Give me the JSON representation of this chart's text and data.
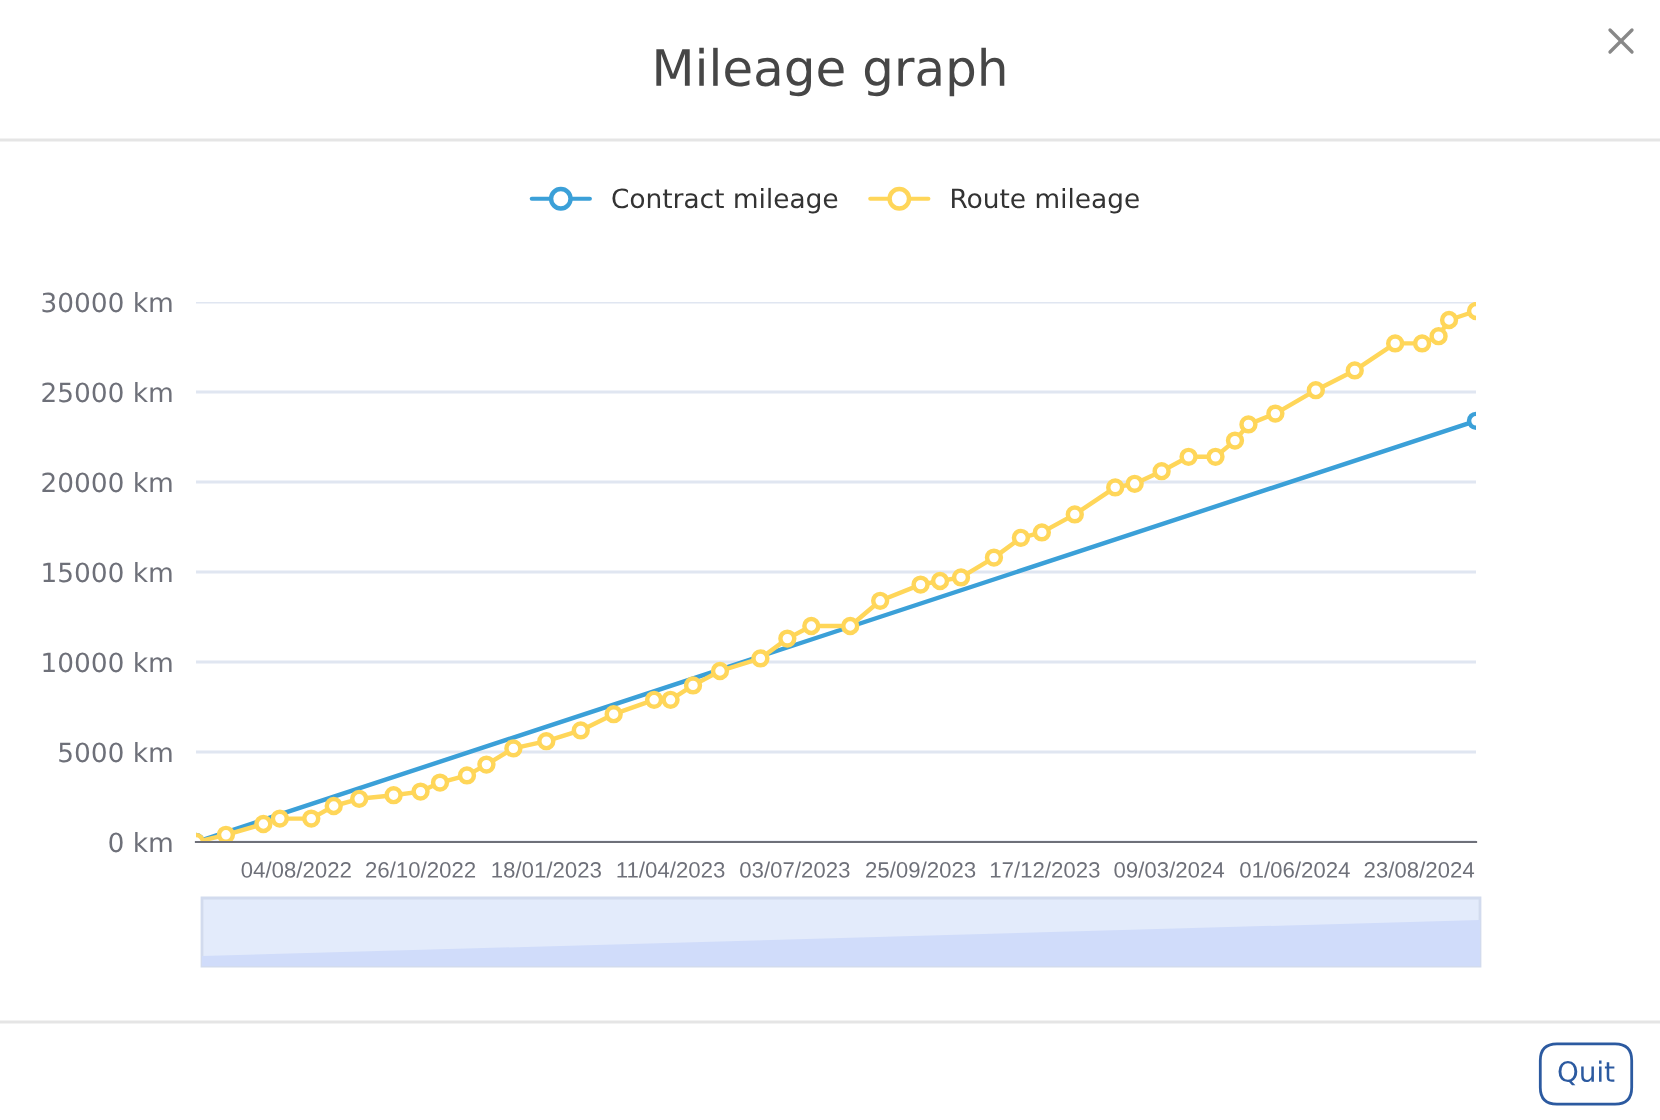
{
  "chart_data": {
    "type": "line",
    "title": "Mileage graph",
    "annotations": [
      "Quit"
    ],
    "legend": "top",
    "grid": "y",
    "marker": "circle",
    "line_style": "solid",
    "xlim": [
      "2022-05-29",
      "2024-09-30"
    ],
    "xticks": [
      {
        "value": "2022-08-04",
        "label": "04/08/2022"
      },
      {
        "value": "2022-10-26",
        "label": "26/10/2022"
      },
      {
        "value": "2023-01-18",
        "label": "18/01/2023"
      },
      {
        "value": "2023-04-11",
        "label": "11/04/2023"
      },
      {
        "value": "2023-07-03",
        "label": "03/07/2023"
      },
      {
        "value": "2023-09-25",
        "label": "25/09/2023"
      },
      {
        "value": "2023-12-17",
        "label": "17/12/2023"
      },
      {
        "value": "2024-03-09",
        "label": "09/03/2024"
      },
      {
        "value": "2024-06-01",
        "label": "01/06/2024"
      },
      {
        "value": "2024-08-23",
        "label": "23/08/2024"
      }
    ],
    "ylim": [
      0,
      30000
    ],
    "yticks": [
      {
        "value": 0,
        "label": "0 km"
      },
      {
        "value": 5000,
        "label": "5000 km"
      },
      {
        "value": 10000,
        "label": "10000 km"
      },
      {
        "value": 15000,
        "label": "15000 km"
      },
      {
        "value": 20000,
        "label": "20000 km"
      },
      {
        "value": 25000,
        "label": "25000 km"
      },
      {
        "value": 30000,
        "label": "30000 km"
      }
    ],
    "series": [
      {
        "name": "Contract mileage",
        "color": "#3ba0d8",
        "x": [
          "2022-05-29",
          "2024-09-30"
        ],
        "values": [
          0,
          23400
        ]
      },
      {
        "name": "Route mileage",
        "color": "#ffd659",
        "x": [
          "2022-05-29",
          "2022-06-18",
          "2022-07-13",
          "2022-07-24",
          "2022-08-14",
          "2022-08-29",
          "2022-09-15",
          "2022-10-08",
          "2022-10-26",
          "2022-11-08",
          "2022-11-26",
          "2022-12-09",
          "2022-12-27",
          "2023-01-18",
          "2023-02-10",
          "2023-03-04",
          "2023-03-31",
          "2023-04-11",
          "2023-04-26",
          "2023-05-14",
          "2023-06-10",
          "2023-06-28",
          "2023-07-14",
          "2023-08-09",
          "2023-08-29",
          "2023-09-25",
          "2023-10-08",
          "2023-10-22",
          "2023-11-13",
          "2023-12-01",
          "2023-12-15",
          "2024-01-06",
          "2024-02-02",
          "2024-02-15",
          "2024-03-04",
          "2024-03-22",
          "2024-04-09",
          "2024-04-22",
          "2024-05-01",
          "2024-05-19",
          "2024-06-15",
          "2024-07-11",
          "2024-08-07",
          "2024-08-25",
          "2024-09-05",
          "2024-09-12",
          "2024-09-30"
        ],
        "values": [
          0,
          400,
          1000,
          1300,
          1300,
          2000,
          2400,
          2600,
          2800,
          3300,
          3700,
          4300,
          5200,
          5600,
          6200,
          7100,
          7900,
          7900,
          8700,
          9500,
          10200,
          11300,
          12000,
          12000,
          13400,
          14300,
          14500,
          14700,
          15800,
          16900,
          17200,
          18200,
          19700,
          19900,
          20600,
          21400,
          21400,
          22300,
          23200,
          23800,
          25100,
          26200,
          27700,
          27700,
          28100,
          29000,
          29500
        ]
      }
    ]
  }
}
